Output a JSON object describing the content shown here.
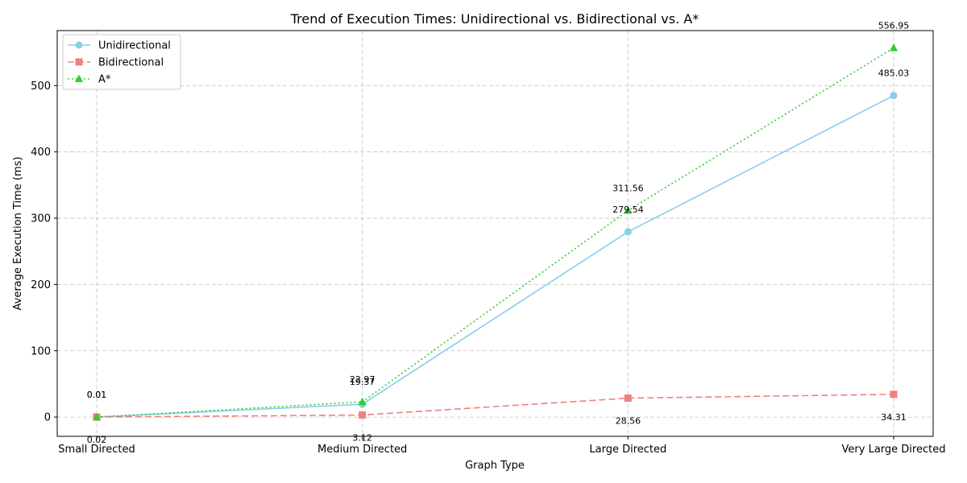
{
  "chart_data": {
    "type": "line",
    "title": "Trend of Execution Times: Unidirectional vs. Bidirectional vs. A*",
    "xlabel": "Graph Type",
    "ylabel": "Average Execution Time (ms)",
    "categories": [
      "Small Directed",
      "Medium Directed",
      "Large Directed",
      "Very Large Directed"
    ],
    "ylim": [
      -29,
      583
    ],
    "yticks": [
      0,
      100,
      200,
      300,
      400,
      500
    ],
    "grid": true,
    "legend_position": "top-left",
    "series": [
      {
        "name": "Unidirectional",
        "values": [
          0.01,
          19.37,
          279.54,
          485.03
        ],
        "labels": [
          "0.01",
          "19.37",
          "279.54",
          "485.03"
        ],
        "color": "#87ceeb",
        "dash": "solid",
        "marker": "circle"
      },
      {
        "name": "Bidirectional",
        "values": [
          0.02,
          3.12,
          28.56,
          34.31
        ],
        "labels": [
          "0.02",
          "3.12",
          "28.56",
          "34.31"
        ],
        "color": "#f08080",
        "dash": "dashed",
        "marker": "square"
      },
      {
        "name": "A*",
        "values": [
          0.01,
          22.97,
          311.56,
          556.95
        ],
        "labels": [
          "0.01",
          "22.97",
          "311.56",
          "556.95"
        ],
        "color": "#32cd32",
        "dash": "dotted",
        "marker": "triangle"
      }
    ]
  }
}
